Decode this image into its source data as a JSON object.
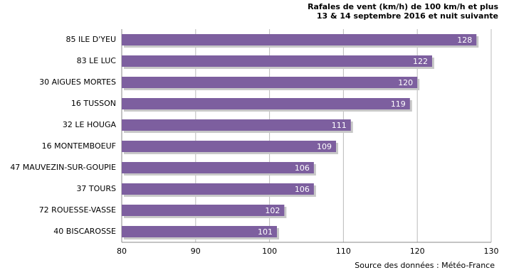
{
  "chart_data": {
    "type": "hbar",
    "title": "Rafales de vent (km/h) de 100 km/h et plus",
    "subtitle": "13 & 14 septembre 2016 et nuit suivante",
    "source": "Source des données : Météo-France",
    "categories": [
      "85 ILE D'YEU",
      "83 LE LUC",
      "30 AIGUES MORTES",
      "16 TUSSON",
      "32 LE HOUGA",
      "16 MONTEMBOEUF",
      "47 MAUVEZIN-SUR-GOUPIE",
      "37 TOURS",
      "72 ROUESSE-VASSE",
      "40 BISCAROSSE"
    ],
    "values": [
      128,
      122,
      120,
      119,
      111,
      109,
      106,
      106,
      102,
      101
    ],
    "color": "#7d5f9f",
    "xlim": [
      80,
      130
    ],
    "xticks": [
      80,
      90,
      100,
      110,
      120,
      130
    ],
    "grid": true
  }
}
